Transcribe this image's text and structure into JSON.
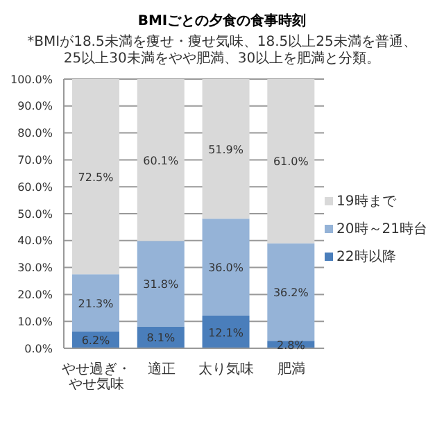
{
  "chart_data": {
    "type": "bar",
    "stacked": true,
    "title": "BMIごとの夕食の食事時刻",
    "subtitle": "*BMIが18.5未満を痩せ・痩せ気味、18.5以上25未満を普通、25以上30未満をやや肥満、30以上を肥満と分類。",
    "categories": [
      "やせ過ぎ・やせ気味",
      "適正",
      "太り気味",
      "肥満"
    ],
    "series": [
      {
        "name": "22時以降",
        "color": "#4a7ebb",
        "values": [
          6.2,
          8.1,
          12.1,
          2.8
        ],
        "value_labels": [
          "6.2%",
          "8.1%",
          "12.1%",
          "2.8%"
        ]
      },
      {
        "name": "20時～21時台",
        "color": "#95b3d7",
        "values": [
          21.3,
          31.8,
          36.0,
          36.2
        ],
        "value_labels": [
          "21.3%",
          "31.8%",
          "36.0%",
          "36.2%"
        ]
      },
      {
        "name": "19時まで",
        "color": "#d9d9d9",
        "values": [
          72.5,
          60.1,
          51.9,
          61.0
        ],
        "value_labels": [
          "72.5%",
          "60.1%",
          "51.9%",
          "61.0%"
        ]
      }
    ],
    "ylim": [
      0,
      100
    ],
    "yticks": [
      {
        "value": 0,
        "label": "0.0%"
      },
      {
        "value": 10,
        "label": "10.0%"
      },
      {
        "value": 20,
        "label": "20.0%"
      },
      {
        "value": 30,
        "label": "30.0%"
      },
      {
        "value": 40,
        "label": "40.0%"
      },
      {
        "value": 50,
        "label": "50.0%"
      },
      {
        "value": 60,
        "label": "60.0%"
      },
      {
        "value": 70,
        "label": "70.0%"
      },
      {
        "value": 80,
        "label": "80.0%"
      },
      {
        "value": 90,
        "label": "90.0%"
      },
      {
        "value": 100,
        "label": "100.0%"
      }
    ],
    "grid": "y",
    "legend": "right"
  }
}
